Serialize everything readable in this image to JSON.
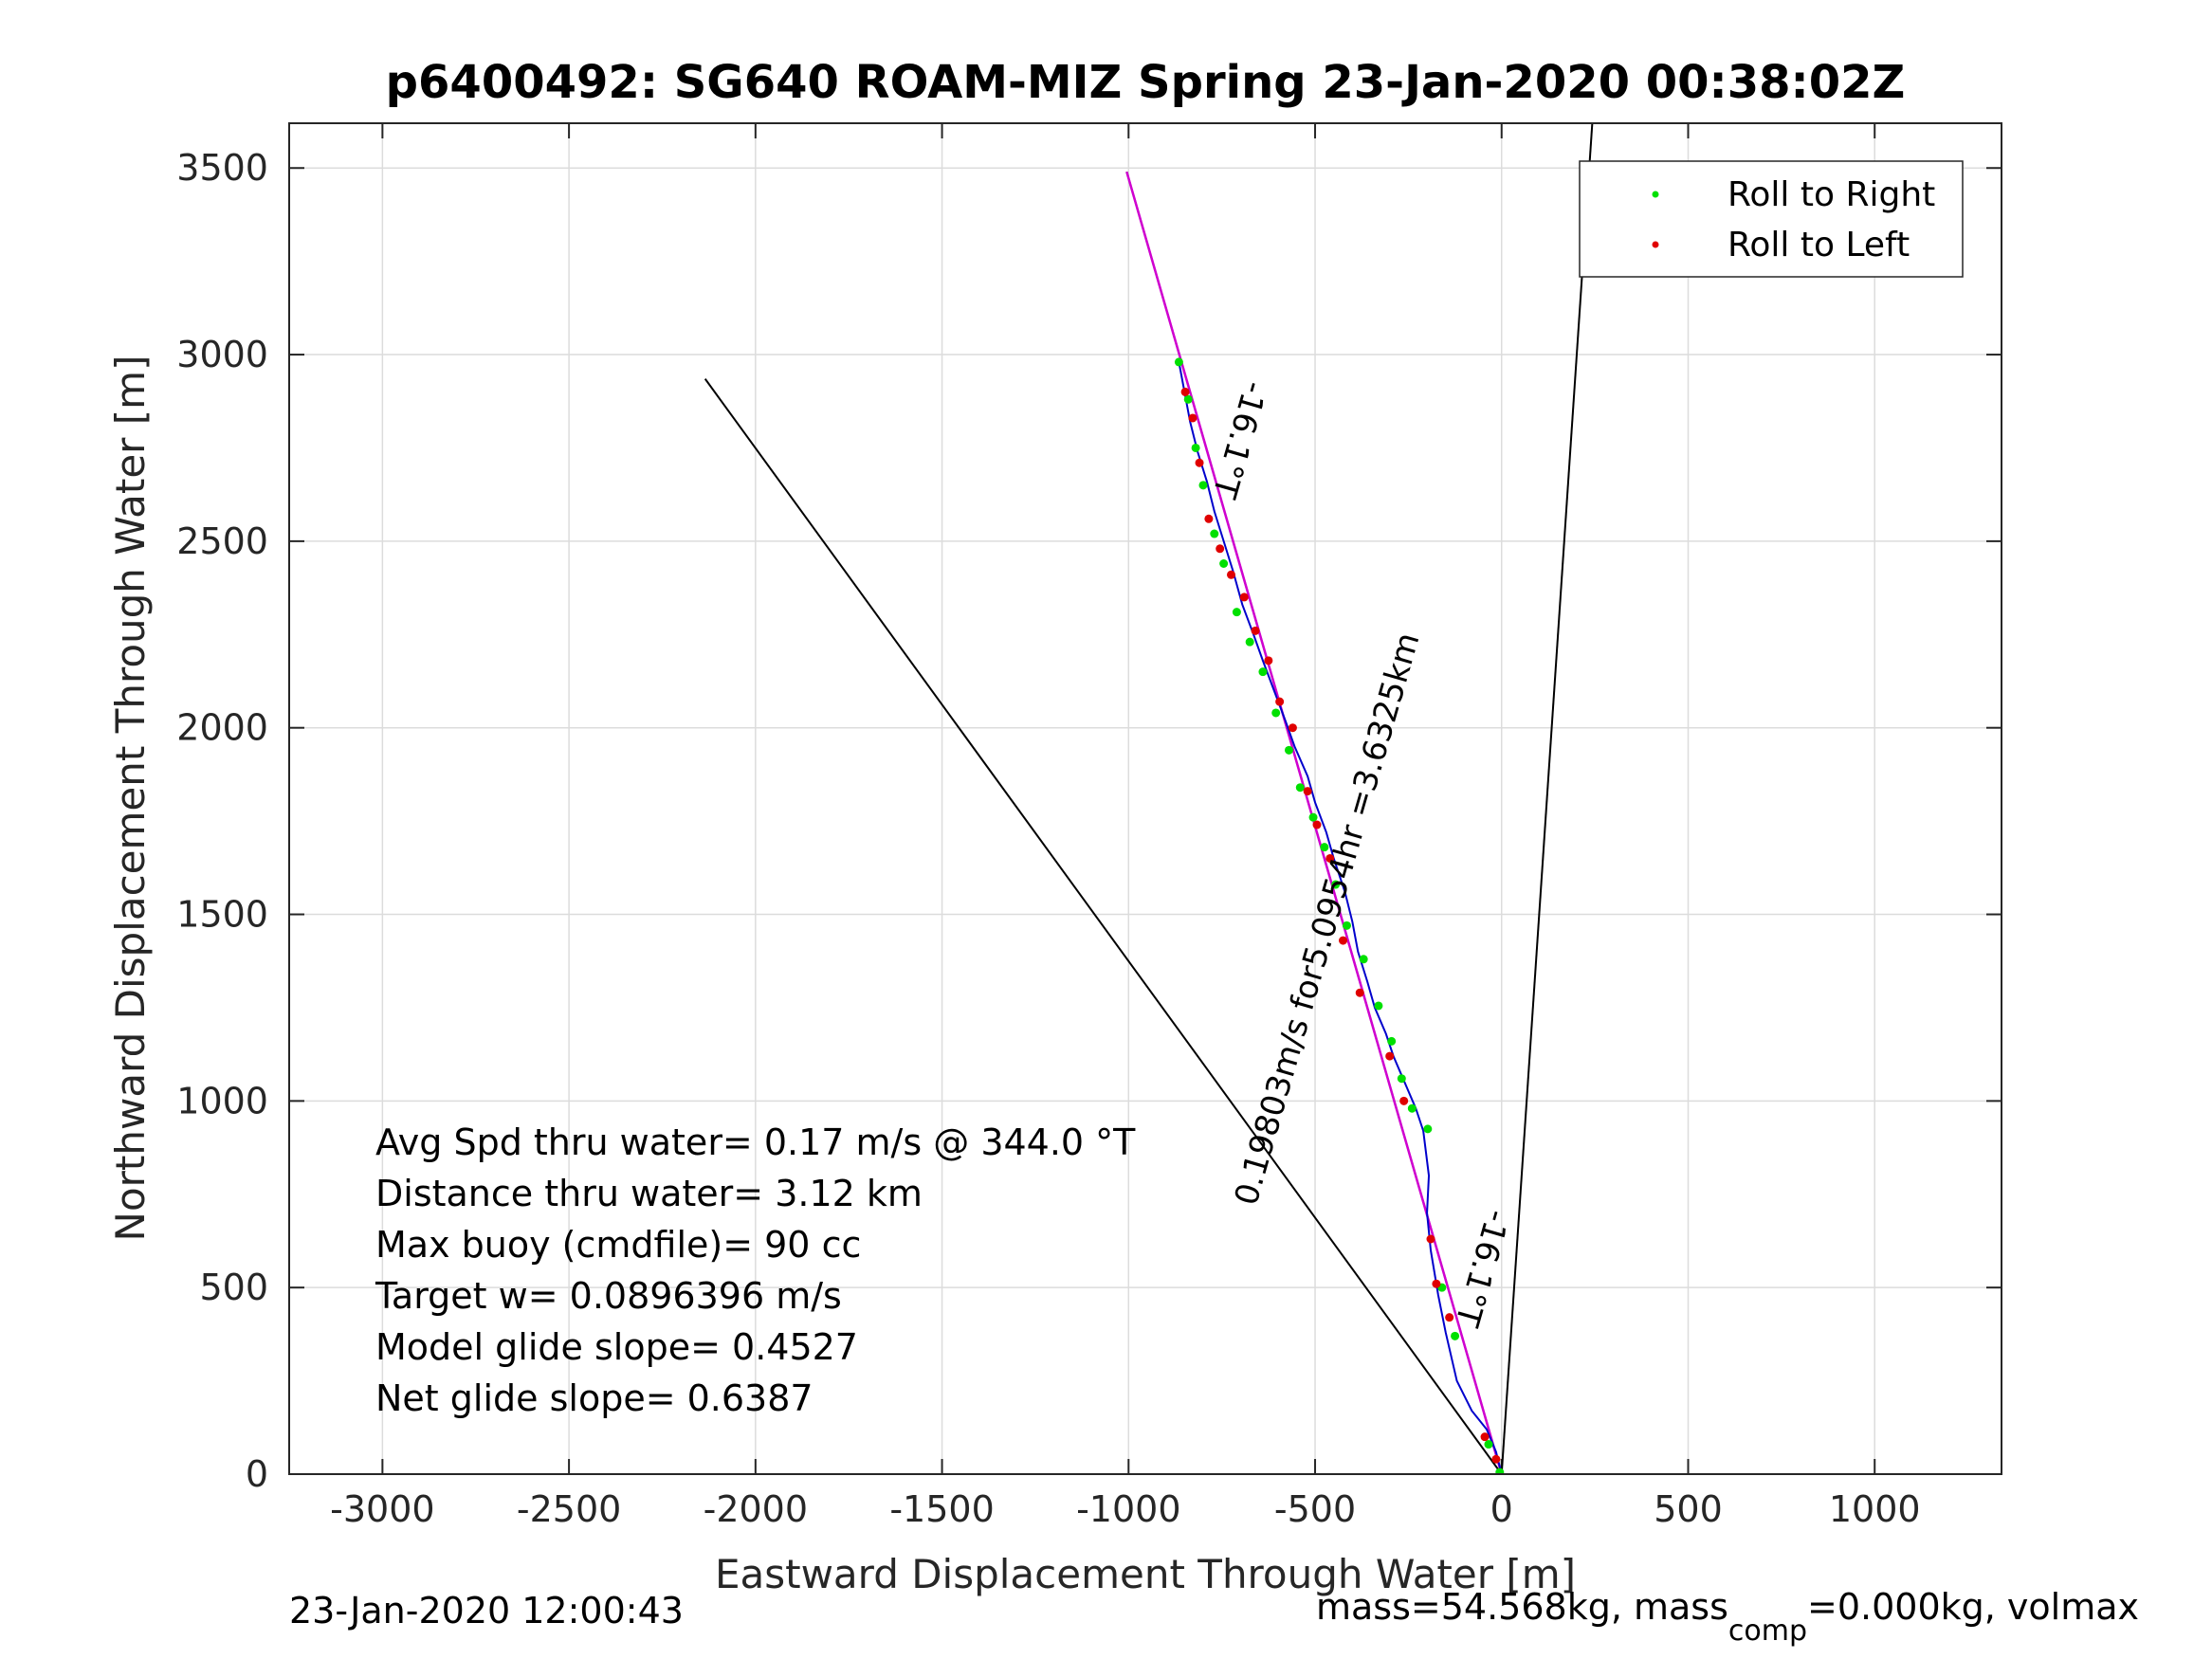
{
  "chart_data": {
    "type": "line",
    "title": "p6400492: SG640 ROAM-MIZ Spring 23-Jan-2020 00:38:02Z",
    "xlabel": "Eastward Displacement Through Water [m]",
    "ylabel": "Northward Displacement Through Water [m]",
    "xlim": [
      -3250,
      1340
    ],
    "ylim": [
      0,
      3620
    ],
    "xticks": [
      -3000,
      -2500,
      -2000,
      -1500,
      -1000,
      -500,
      0,
      500,
      1000
    ],
    "xtick_labels": [
      "-3000",
      "-2500",
      "-2000",
      "-1500",
      "-1000",
      "-500",
      "0",
      "500",
      "1000"
    ],
    "yticks": [
      0,
      500,
      1000,
      1500,
      2000,
      2500,
      3000,
      3500
    ],
    "ytick_labels": [
      "0",
      "500",
      "1000",
      "1500",
      "2000",
      "2500",
      "3000",
      "3500"
    ],
    "grid": true,
    "legend": {
      "placement": "top-right",
      "entries": [
        {
          "label": "Roll to Right",
          "color": "#00e000"
        },
        {
          "label": "Roll to Left",
          "color": "#e00000"
        }
      ]
    },
    "lines": [
      {
        "name": "heading-line-black",
        "color": "#000000",
        "points": [
          [
            0,
            0
          ],
          [
            -1005,
            3490
          ]
        ]
      },
      {
        "name": "heading-line-magenta",
        "color": "#d000d0",
        "points": [
          [
            0,
            0
          ],
          [
            -1005,
            3490
          ]
        ]
      },
      {
        "name": "current-line",
        "color": "#000000",
        "points": [
          [
            0,
            0
          ],
          [
            -2135,
            2935
          ]
        ]
      },
      {
        "name": "north-ref-line",
        "color": "#000000",
        "points": [
          [
            0,
            0
          ],
          [
            243,
            3620
          ]
        ]
      }
    ],
    "track": {
      "color": "#0000cc",
      "points": [
        [
          0,
          0
        ],
        [
          -15,
          60
        ],
        [
          -40,
          120
        ],
        [
          -80,
          170
        ],
        [
          -120,
          250
        ],
        [
          -150,
          380
        ],
        [
          -170,
          480
        ],
        [
          -190,
          600
        ],
        [
          -200,
          700
        ],
        [
          -195,
          800
        ],
        [
          -210,
          920
        ],
        [
          -230,
          980
        ],
        [
          -260,
          1050
        ],
        [
          -290,
          1120
        ],
        [
          -310,
          1180
        ],
        [
          -340,
          1250
        ],
        [
          -360,
          1320
        ],
        [
          -385,
          1400
        ],
        [
          -400,
          1480
        ],
        [
          -420,
          1560
        ],
        [
          -450,
          1650
        ],
        [
          -470,
          1720
        ],
        [
          -500,
          1800
        ],
        [
          -520,
          1870
        ],
        [
          -555,
          1950
        ],
        [
          -580,
          2020
        ],
        [
          -610,
          2100
        ],
        [
          -640,
          2180
        ],
        [
          -665,
          2250
        ],
        [
          -695,
          2330
        ],
        [
          -720,
          2420
        ],
        [
          -745,
          2500
        ],
        [
          -770,
          2580
        ],
        [
          -790,
          2660
        ],
        [
          -815,
          2740
        ],
        [
          -835,
          2820
        ],
        [
          -850,
          2900
        ],
        [
          -865,
          2980
        ]
      ]
    },
    "roll_right_points": [
      [
        -5,
        5
      ],
      [
        -35,
        80
      ],
      [
        -125,
        370
      ],
      [
        -160,
        500
      ],
      [
        -198,
        925
      ],
      [
        -240,
        980
      ],
      [
        -268,
        1060
      ],
      [
        -295,
        1160
      ],
      [
        -330,
        1255
      ],
      [
        -370,
        1380
      ],
      [
        -415,
        1470
      ],
      [
        -445,
        1580
      ],
      [
        -475,
        1680
      ],
      [
        -505,
        1760
      ],
      [
        -540,
        1840
      ],
      [
        -570,
        1940
      ],
      [
        -605,
        2040
      ],
      [
        -640,
        2150
      ],
      [
        -675,
        2230
      ],
      [
        -710,
        2310
      ],
      [
        -745,
        2440
      ],
      [
        -770,
        2520
      ],
      [
        -800,
        2650
      ],
      [
        -820,
        2750
      ],
      [
        -840,
        2880
      ],
      [
        -865,
        2980
      ]
    ],
    "roll_left_points": [
      [
        -15,
        40
      ],
      [
        -45,
        100
      ],
      [
        -140,
        420
      ],
      [
        -175,
        510
      ],
      [
        -190,
        630
      ],
      [
        -262,
        1000
      ],
      [
        -300,
        1120
      ],
      [
        -380,
        1290
      ],
      [
        -425,
        1430
      ],
      [
        -460,
        1650
      ],
      [
        -495,
        1740
      ],
      [
        -520,
        1830
      ],
      [
        -560,
        2000
      ],
      [
        -595,
        2070
      ],
      [
        -625,
        2180
      ],
      [
        -660,
        2260
      ],
      [
        -690,
        2350
      ],
      [
        -725,
        2410
      ],
      [
        -755,
        2480
      ],
      [
        -785,
        2560
      ],
      [
        -810,
        2710
      ],
      [
        -828,
        2830
      ],
      [
        -848,
        2900
      ]
    ],
    "annotations": [
      {
        "text": "-16.1°T",
        "x": -730,
        "y": 2780,
        "rotation": 106
      },
      {
        "text": "0.19803m/s for5.0954hr =3.6325km",
        "x": -440,
        "y": 1480,
        "rotation": -74
      },
      {
        "text": "-16.1°T",
        "x": -80,
        "y": 560,
        "rotation": 106
      }
    ],
    "stats": [
      "Avg Spd thru water=  0.17 m/s @ 344.0 °T",
      "Distance thru water=  3.12 km",
      "Max buoy (cmdfile)= 90 cc",
      "Target w= 0.0896396 m/s",
      "Model glide slope= 0.4527",
      "Net glide slope= 0.6387"
    ],
    "footer_left": "23-Jan-2020 12:00:43",
    "footer_right_pre": "mass=54.568kg, mass",
    "footer_right_sub": "comp",
    "footer_right_post": "=0.000kg, volmax"
  }
}
